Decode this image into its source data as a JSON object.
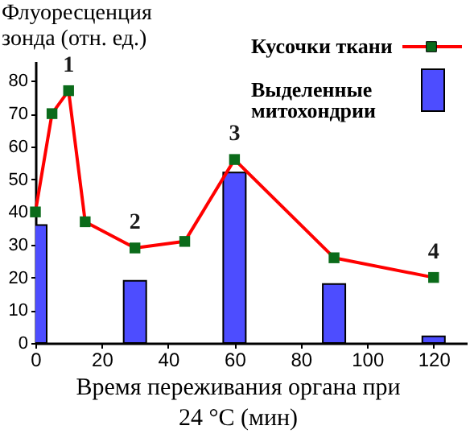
{
  "chart_data": {
    "type": "line",
    "ylabel": "Флуоресценция зонда (отн. ед.)",
    "xlabel": "Время переживания органа при 24 °C (мин)",
    "xlim": [
      0,
      130
    ],
    "xticks": [
      0,
      20,
      40,
      60,
      80,
      100,
      120
    ],
    "ylim": [
      0,
      86
    ],
    "yticks": [
      0,
      10,
      20,
      30,
      40,
      50,
      60,
      70,
      80
    ],
    "series": [
      {
        "name": "Кусочки ткани",
        "type": "line",
        "color": "#ff0000",
        "x": [
          0,
          5,
          10,
          15,
          30,
          45,
          60,
          90,
          120
        ],
        "values": [
          40,
          70,
          77,
          37,
          29,
          31,
          56,
          26,
          20
        ]
      },
      {
        "name": "Выделенные митохондрии",
        "type": "bar",
        "color": "#4d4dff",
        "x": [
          0,
          30,
          60,
          90,
          120
        ],
        "values": [
          36,
          19,
          52,
          18,
          2
        ]
      }
    ],
    "annotations": [
      {
        "text": "1",
        "x": 10,
        "y": 77
      },
      {
        "text": "2",
        "x": 30,
        "y": 29
      },
      {
        "text": "3",
        "x": 60,
        "y": 56
      },
      {
        "text": "4",
        "x": 120,
        "y": 20
      }
    ],
    "marker": "square",
    "grid": false,
    "legend": "top right"
  }
}
